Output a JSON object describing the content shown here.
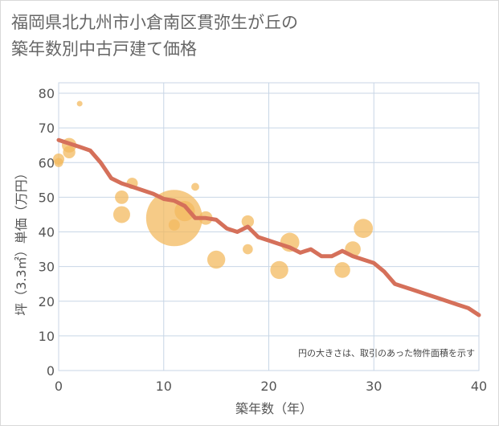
{
  "chart_data": {
    "type": "scatter",
    "title_lines": [
      "福岡県北九州市小倉南区貫弥生が丘の",
      "築年数別中古戸建て価格"
    ],
    "xlabel": "築年数（年）",
    "ylabel": "坪（3.3㎡）単価（万円）",
    "xlim": [
      0,
      40
    ],
    "ylim": [
      0,
      85
    ],
    "xticks": [
      0,
      10,
      20,
      30,
      40
    ],
    "yticks": [
      0,
      10,
      20,
      30,
      40,
      50,
      60,
      70,
      80
    ],
    "grid": true,
    "note": "円の大きさは、取引のあった物件面積を示す",
    "colors": {
      "bubble": "#f3b95f",
      "line": "#d5705a",
      "grid": "#c8d6e6"
    },
    "points": [
      {
        "x": 0,
        "y": 61,
        "size": 1.0
      },
      {
        "x": 0,
        "y": 60,
        "size": 0.8
      },
      {
        "x": 1,
        "y": 65,
        "size": 1.3
      },
      {
        "x": 1,
        "y": 63,
        "size": 1.1
      },
      {
        "x": 2,
        "y": 77,
        "size": 0.5
      },
      {
        "x": 6,
        "y": 50,
        "size": 1.2
      },
      {
        "x": 6,
        "y": 45,
        "size": 1.5
      },
      {
        "x": 7,
        "y": 54,
        "size": 1.0
      },
      {
        "x": 11,
        "y": 44,
        "size": 5.0
      },
      {
        "x": 11,
        "y": 42,
        "size": 1.0
      },
      {
        "x": 12,
        "y": 46,
        "size": 1.8
      },
      {
        "x": 13,
        "y": 53,
        "size": 0.7
      },
      {
        "x": 14,
        "y": 44,
        "size": 1.2
      },
      {
        "x": 15,
        "y": 32,
        "size": 1.6
      },
      {
        "x": 18,
        "y": 43,
        "size": 1.1
      },
      {
        "x": 18,
        "y": 35,
        "size": 0.9
      },
      {
        "x": 21,
        "y": 29,
        "size": 1.6
      },
      {
        "x": 22,
        "y": 37,
        "size": 1.7
      },
      {
        "x": 27,
        "y": 29,
        "size": 1.4
      },
      {
        "x": 28,
        "y": 35,
        "size": 1.4
      },
      {
        "x": 29,
        "y": 41,
        "size": 1.7
      }
    ],
    "trend": {
      "x": [
        0,
        1,
        2,
        3,
        4,
        5,
        6,
        7,
        8,
        9,
        10,
        11,
        12,
        13,
        14,
        15,
        16,
        17,
        18,
        19,
        20,
        21,
        22,
        23,
        24,
        25,
        26,
        27,
        28,
        29,
        30,
        31,
        32,
        33,
        34,
        35,
        36,
        37,
        38,
        39,
        40
      ],
      "y": [
        66.5,
        65.5,
        64.5,
        63.5,
        60,
        55.5,
        54,
        53,
        52,
        51,
        49.5,
        49,
        47.5,
        44,
        44,
        43.5,
        41,
        40,
        41.5,
        38.5,
        37.5,
        36.5,
        35.5,
        34,
        35,
        33,
        33,
        34.5,
        33,
        32,
        31,
        28.5,
        25,
        24,
        23,
        22,
        21,
        20,
        19,
        18,
        16
      ]
    }
  }
}
